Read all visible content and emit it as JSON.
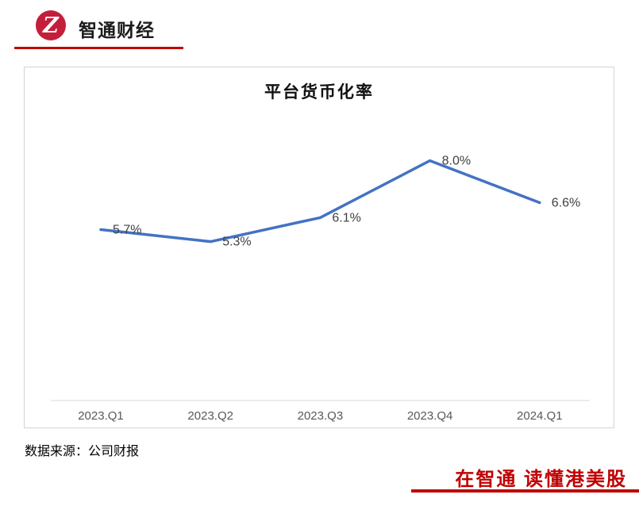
{
  "header": {
    "brand": "智通财经",
    "logo_glyph": "Z"
  },
  "chart_data": {
    "type": "line",
    "title": "平台货币化率",
    "categories": [
      "2023.Q1",
      "2023.Q2",
      "2023.Q3",
      "2023.Q4",
      "2024.Q1"
    ],
    "values": [
      5.7,
      5.3,
      6.1,
      8.0,
      6.6
    ],
    "labels": [
      "5.7%",
      "5.3%",
      "6.1%",
      "8.0%",
      "6.6%"
    ],
    "ylim": [
      0,
      10
    ],
    "xlabel": "",
    "ylabel": "",
    "grid": false,
    "legend": "none"
  },
  "footer": {
    "source_note": "数据来源：公司财报",
    "slogan": "在智通 读懂港美股"
  },
  "colors": {
    "accent_red": "#C00000",
    "logo_red": "#C41E3A",
    "line_blue": "#4472C4",
    "axis_gray": "#D9D9D9",
    "tick_gray": "#595959",
    "data_label_gray": "#404040"
  }
}
